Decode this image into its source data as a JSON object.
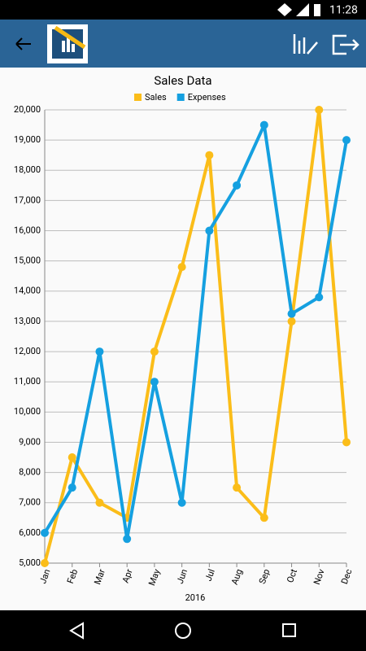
{
  "status_bar": {
    "time": "11:28"
  },
  "chart_data": {
    "type": "line",
    "title": "Sales Data",
    "x_label": "2016",
    "categories": [
      "Jan",
      "Feb",
      "Mar",
      "Apr",
      "May",
      "Jun",
      "Jul",
      "Aug",
      "Sep",
      "Oct",
      "Nov",
      "Dec"
    ],
    "series": [
      {
        "name": "Sales",
        "color": "#fbbd19",
        "values": [
          5000,
          8500,
          7000,
          6500,
          12000,
          14800,
          18500,
          7500,
          6500,
          13000,
          20000,
          9000
        ]
      },
      {
        "name": "Expenses",
        "color": "#15a0e0",
        "values": [
          6000,
          7500,
          12000,
          5800,
          11000,
          7000,
          16000,
          17500,
          19500,
          13250,
          13800,
          19000
        ]
      }
    ],
    "ylim": [
      5000,
      20000
    ],
    "yticks": [
      {
        "value": 5000,
        "label": "5,000"
      },
      {
        "value": 6000,
        "label": "6,000"
      },
      {
        "value": 7000,
        "label": "7,000"
      },
      {
        "value": 8000,
        "label": "8,000"
      },
      {
        "value": 9000,
        "label": "9,000"
      },
      {
        "value": 10000,
        "label": "10,000"
      },
      {
        "value": 11000,
        "label": "11,000"
      },
      {
        "value": 12000,
        "label": "12,000"
      },
      {
        "value": 13000,
        "label": "13,000"
      },
      {
        "value": 14000,
        "label": "14,000"
      },
      {
        "value": 15000,
        "label": "15,000"
      },
      {
        "value": 16000,
        "label": "16,000"
      },
      {
        "value": 17000,
        "label": "17,000"
      },
      {
        "value": 18000,
        "label": "18,000"
      },
      {
        "value": 19000,
        "label": "19,000"
      },
      {
        "value": 20000,
        "label": "20,000"
      }
    ],
    "grid": true
  }
}
